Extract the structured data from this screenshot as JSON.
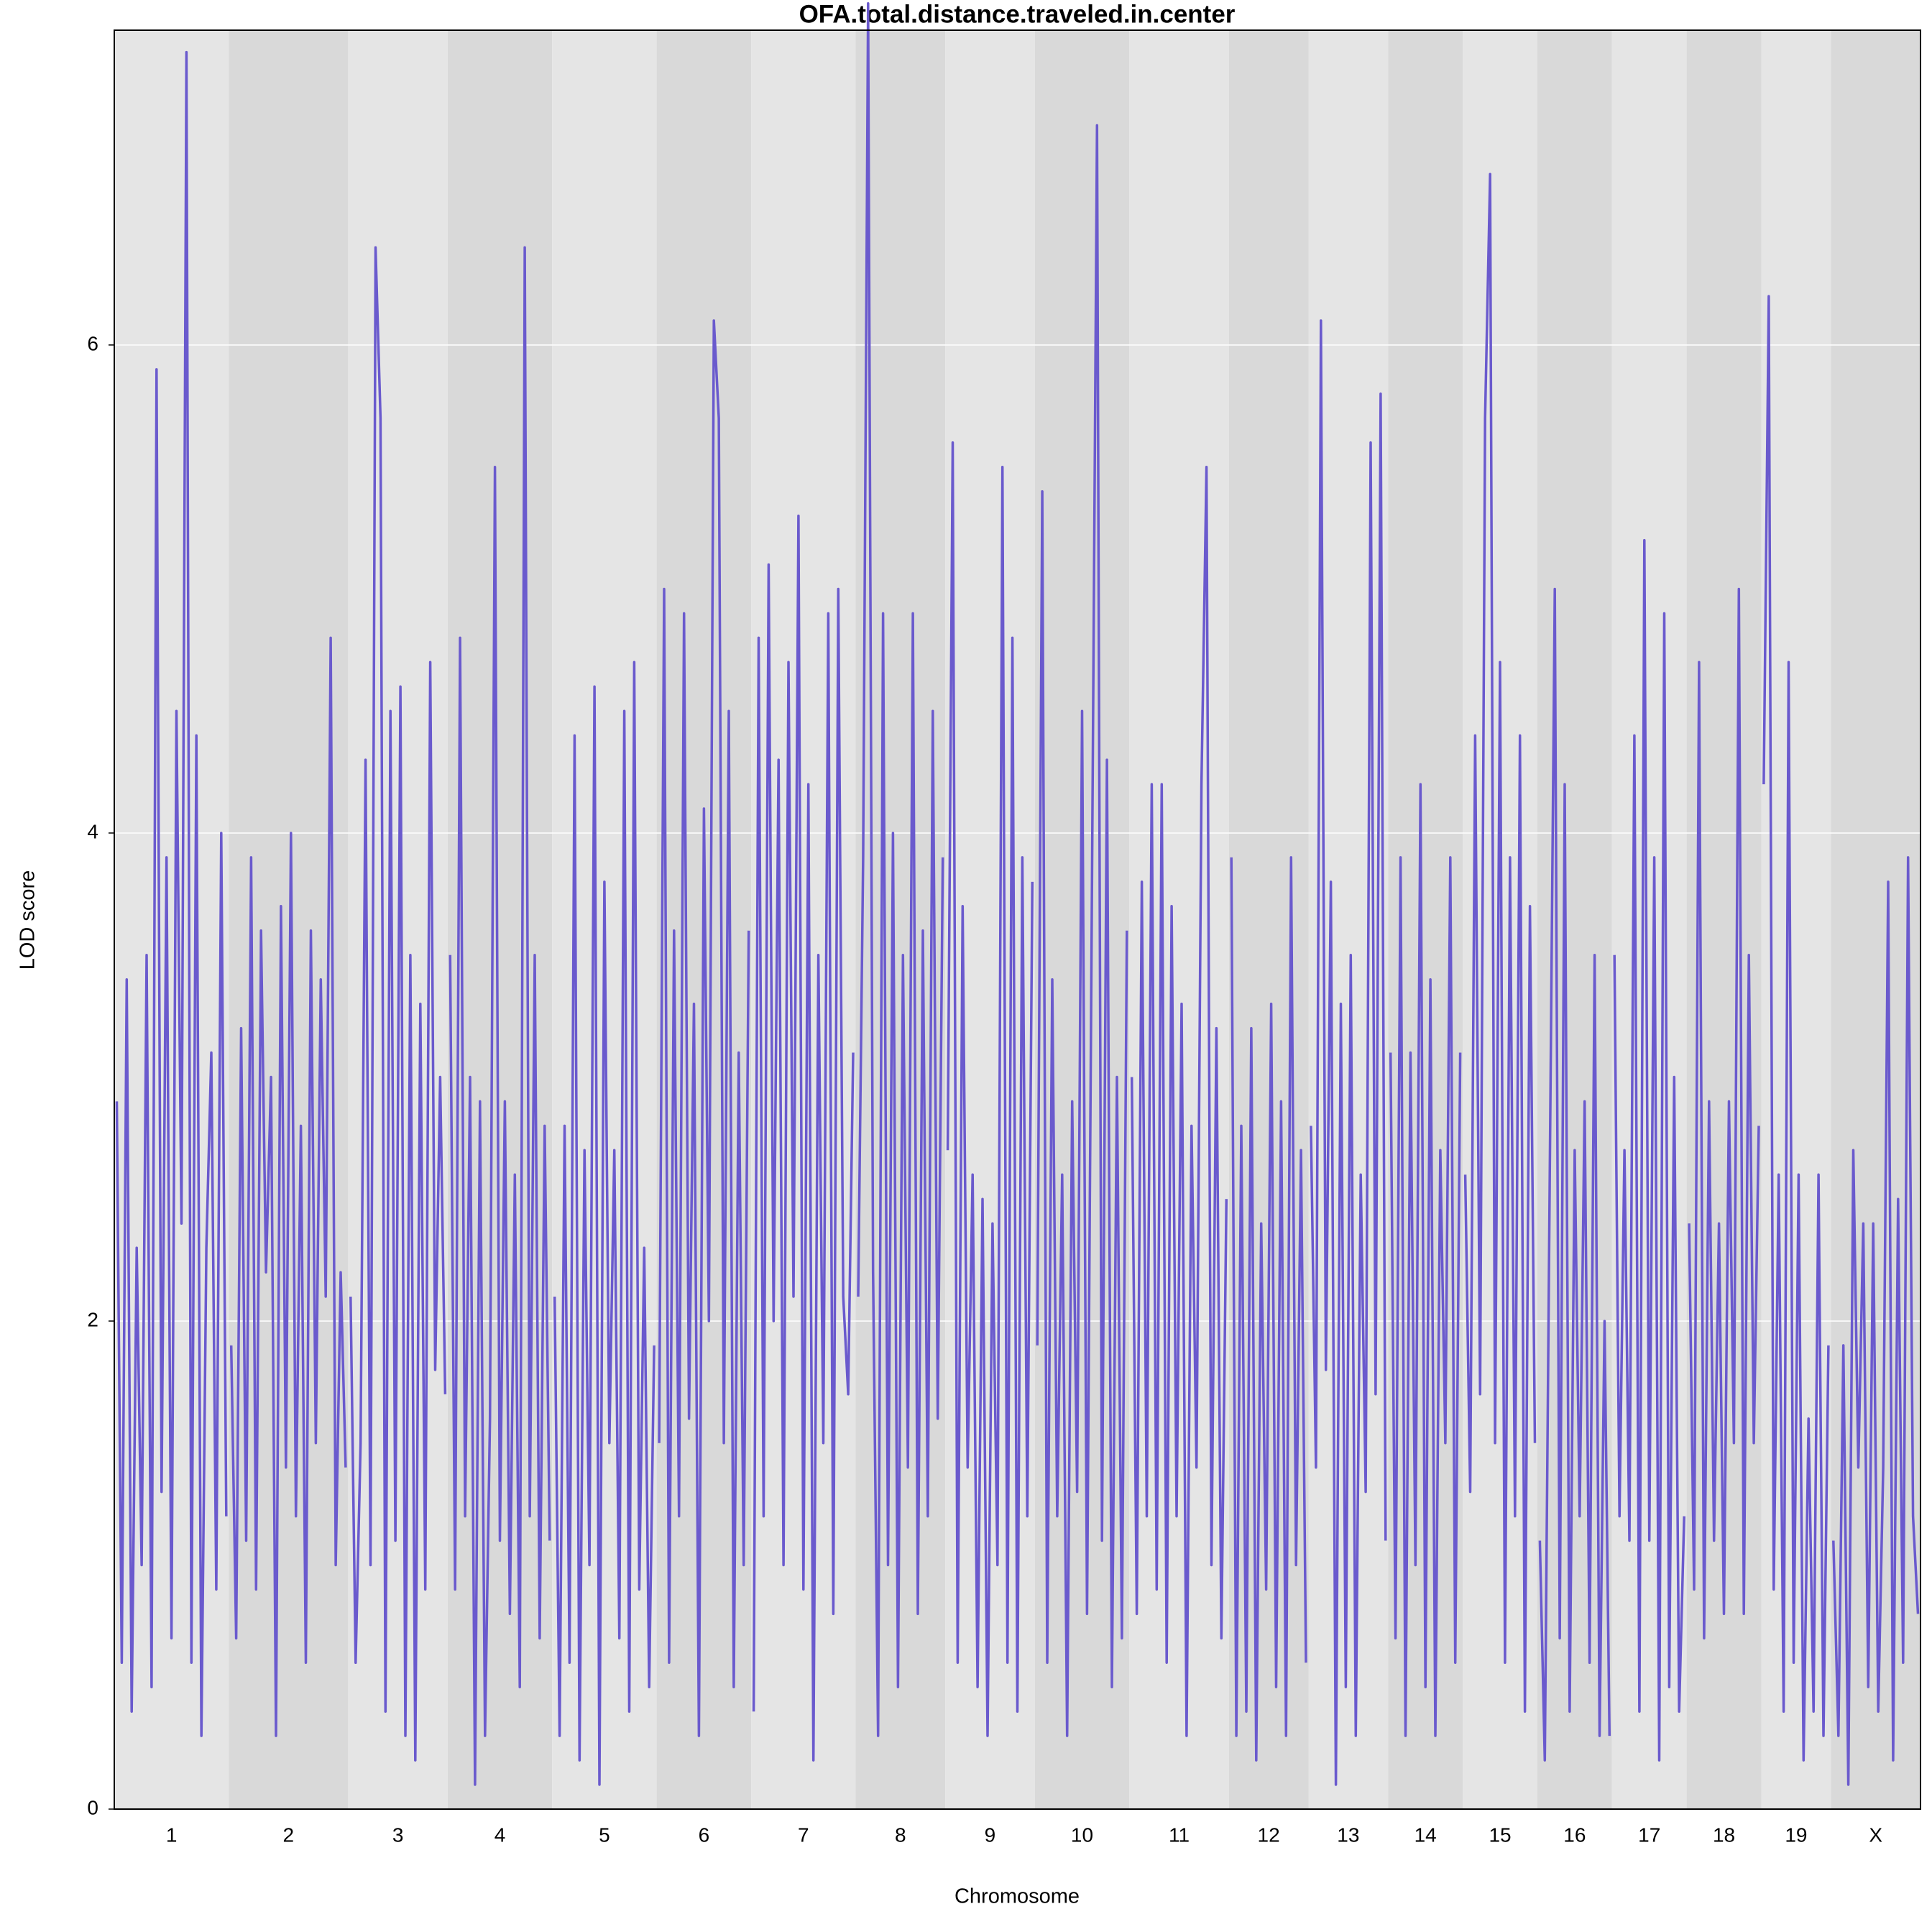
{
  "chart_data": {
    "type": "line",
    "title": "OFA.total.distance.traveled.in.center",
    "xlabel": "Chromosome",
    "ylabel": "LOD score",
    "color": "#6a5acd",
    "band_colors": [
      "#e5e5e5",
      "#d9d9d9"
    ],
    "grid": true,
    "ylim": [
      0,
      7.29
    ],
    "yticks": [
      0,
      2,
      4,
      6
    ],
    "series": [
      {
        "name": "1",
        "values": [
          2.9,
          0.6,
          3.4,
          0.4,
          2.3,
          1.0,
          3.5,
          0.5,
          5.9,
          1.3,
          3.9,
          0.7,
          4.5,
          2.4,
          7.2,
          0.6,
          4.4,
          0.3,
          2.3,
          3.1,
          0.9,
          4.0,
          1.2
        ]
      },
      {
        "name": "2",
        "values": [
          1.9,
          0.7,
          3.2,
          1.1,
          3.9,
          0.9,
          3.6,
          2.2,
          3.0,
          0.3,
          3.7,
          1.4,
          4.0,
          1.2,
          2.8,
          0.6,
          3.6,
          1.5,
          3.4,
          2.1,
          4.8,
          1.0,
          2.2,
          1.4
        ]
      },
      {
        "name": "3",
        "values": [
          2.1,
          0.6,
          1.5,
          4.3,
          1.0,
          6.4,
          5.7,
          0.4,
          4.5,
          1.1,
          4.6,
          0.3,
          3.5,
          0.2,
          3.3,
          0.9,
          4.7,
          1.8,
          3.0,
          1.7
        ]
      },
      {
        "name": "4",
        "values": [
          3.5,
          0.9,
          4.8,
          1.2,
          3.0,
          0.1,
          2.9,
          0.3,
          1.6,
          5.5,
          1.1,
          2.9,
          0.8,
          2.6,
          0.5,
          6.4,
          1.2,
          3.5,
          0.7,
          2.8,
          1.1
        ]
      },
      {
        "name": "5",
        "values": [
          2.1,
          0.3,
          2.8,
          0.6,
          4.4,
          0.2,
          2.7,
          1.0,
          4.6,
          0.1,
          3.8,
          1.5,
          2.7,
          0.7,
          4.5,
          0.4,
          4.7,
          0.9,
          2.3,
          0.5,
          1.9
        ]
      },
      {
        "name": "6",
        "values": [
          1.5,
          5.0,
          0.6,
          3.6,
          1.2,
          4.9,
          1.6,
          3.3,
          0.3,
          4.1,
          2.0,
          6.1,
          5.7,
          1.5,
          4.5,
          0.5,
          3.1,
          1.0,
          3.6
        ]
      },
      {
        "name": "7",
        "values": [
          0.4,
          4.8,
          1.2,
          5.1,
          2.0,
          4.3,
          1.0,
          4.7,
          2.1,
          5.3,
          0.9,
          4.2,
          0.2,
          3.5,
          1.5,
          4.9,
          0.8,
          5.0,
          2.1,
          1.7,
          3.1
        ]
      },
      {
        "name": "8",
        "values": [
          2.1,
          3.9,
          7.4,
          2.2,
          0.3,
          4.9,
          1.0,
          4.0,
          0.5,
          3.5,
          1.4,
          4.9,
          0.8,
          3.6,
          1.2,
          4.5,
          1.6,
          3.9
        ]
      },
      {
        "name": "9",
        "values": [
          2.7,
          5.6,
          0.6,
          3.7,
          1.4,
          2.6,
          0.5,
          2.5,
          0.3,
          2.4,
          1.0,
          5.5,
          0.6,
          4.8,
          0.4,
          3.9,
          1.2,
          3.8
        ]
      },
      {
        "name": "10",
        "values": [
          1.9,
          5.4,
          0.6,
          3.4,
          1.2,
          2.6,
          0.3,
          2.9,
          1.3,
          4.5,
          0.8,
          3.8,
          6.9,
          1.1,
          4.3,
          0.5,
          3.0,
          0.7,
          3.6
        ]
      },
      {
        "name": "11",
        "values": [
          3.0,
          0.8,
          3.8,
          1.2,
          4.2,
          0.9,
          4.2,
          0.6,
          3.7,
          1.2,
          3.3,
          0.3,
          2.8,
          1.4,
          4.2,
          5.5,
          1.0,
          3.2,
          0.7,
          2.5
        ]
      },
      {
        "name": "12",
        "values": [
          3.9,
          0.3,
          2.8,
          0.4,
          3.2,
          0.2,
          2.4,
          0.9,
          3.3,
          0.5,
          2.9,
          0.3,
          3.9,
          1.0,
          2.7,
          0.6
        ]
      },
      {
        "name": "13",
        "values": [
          2.8,
          1.4,
          6.1,
          1.8,
          3.8,
          0.1,
          3.3,
          0.5,
          3.5,
          0.3,
          2.6,
          1.3,
          5.6,
          1.7,
          5.8,
          1.1
        ]
      },
      {
        "name": "14",
        "values": [
          3.1,
          0.7,
          3.9,
          0.3,
          3.1,
          1.0,
          4.2,
          0.5,
          3.4,
          0.3,
          2.7,
          1.5,
          3.9,
          0.6,
          3.1
        ]
      },
      {
        "name": "15",
        "values": [
          2.6,
          1.3,
          4.4,
          1.7,
          5.7,
          6.7,
          1.5,
          4.7,
          0.6,
          3.9,
          1.2,
          4.4,
          0.4,
          3.7,
          1.5
        ]
      },
      {
        "name": "16",
        "values": [
          1.1,
          0.2,
          2.6,
          5.0,
          0.7,
          4.2,
          0.4,
          2.7,
          1.2,
          2.9,
          0.6,
          3.5,
          0.3,
          2.0,
          0.3
        ]
      },
      {
        "name": "17",
        "values": [
          3.5,
          1.2,
          2.7,
          1.1,
          4.4,
          0.4,
          5.2,
          1.1,
          3.9,
          0.2,
          4.9,
          0.5,
          3.0,
          0.4,
          1.2
        ]
      },
      {
        "name": "18",
        "values": [
          2.4,
          0.9,
          4.7,
          0.7,
          2.9,
          1.1,
          2.4,
          0.8,
          2.9,
          1.5,
          5.0,
          0.8,
          3.5,
          1.5,
          2.8
        ]
      },
      {
        "name": "19",
        "values": [
          4.2,
          6.2,
          0.9,
          2.6,
          0.4,
          4.7,
          0.6,
          2.6,
          0.2,
          1.6,
          0.4,
          2.6,
          0.3,
          1.9
        ]
      },
      {
        "name": "X",
        "values": [
          1.1,
          0.3,
          1.9,
          0.1,
          2.7,
          1.4,
          2.4,
          0.5,
          2.4,
          0.4,
          1.4,
          3.8,
          0.2,
          2.5,
          0.6,
          3.9,
          1.2,
          0.8
        ]
      }
    ]
  }
}
